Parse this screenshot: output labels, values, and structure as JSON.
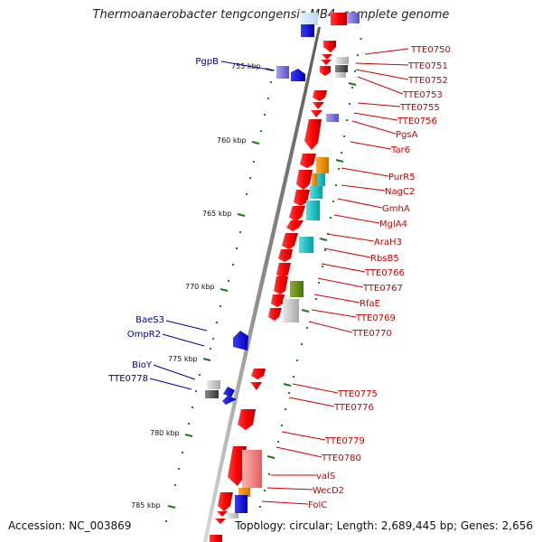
{
  "title": "Thermoanaerobacter tengcongensis MB4, complete genome",
  "accession": "Accession: NC_003869",
  "topology": "Topology: circular; Length: 2,689,445 bp; Genes: 2,656",
  "colors": {
    "right_label": "#cc0000",
    "left_label": "#00009a",
    "tick": "#1a7a1a",
    "backbone": "#888888"
  },
  "ticks": [
    {
      "label": "755 kbp"
    },
    {
      "label": "760 kbp"
    },
    {
      "label": "765 kbp"
    },
    {
      "label": "770 kbp"
    },
    {
      "label": "775 kbp"
    },
    {
      "label": "780 kbp"
    },
    {
      "label": "785 kbp"
    }
  ],
  "right_labels": [
    {
      "text": "TTE0750"
    },
    {
      "text": "TTE0751"
    },
    {
      "text": "TTE0752"
    },
    {
      "text": "TTE0753"
    },
    {
      "text": "TTE0755"
    },
    {
      "text": "TTE0756"
    },
    {
      "text": "PgsA"
    },
    {
      "text": "Tar6"
    },
    {
      "text": "PurR5"
    },
    {
      "text": "NagC2"
    },
    {
      "text": "GmhA"
    },
    {
      "text": "MglA4"
    },
    {
      "text": "AraH3"
    },
    {
      "text": "RbsB5"
    },
    {
      "text": "TTE0766"
    },
    {
      "text": "TTE0767"
    },
    {
      "text": "RfaE"
    },
    {
      "text": "TTE0769"
    },
    {
      "text": "TTE0770"
    },
    {
      "text": "TTE0775"
    },
    {
      "text": "TTE0776"
    },
    {
      "text": "TTE0779"
    },
    {
      "text": "TTE0780"
    },
    {
      "text": "valS"
    },
    {
      "text": "WecD2"
    },
    {
      "text": "FolC"
    }
  ],
  "left_labels": [
    {
      "text": "PgpB"
    },
    {
      "text": "BaeS3"
    },
    {
      "text": "OmpR2"
    },
    {
      "text": "BioY"
    },
    {
      "text": "TTE0778"
    }
  ]
}
